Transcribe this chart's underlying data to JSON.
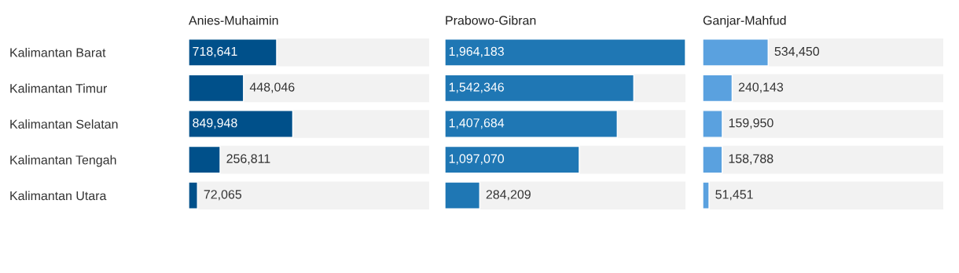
{
  "chart_data": [
    {
      "type": "bar",
      "orientation": "horizontal",
      "title": "Anies-Muhaimin",
      "categories": [
        "Kalimantan Barat",
        "Kalimantan Timur",
        "Kalimantan Selatan",
        "Kalimantan Tengah",
        "Kalimantan Utara"
      ],
      "values": [
        718641,
        448046,
        849948,
        256811,
        72065
      ],
      "value_labels": [
        "718,641",
        "448,046",
        "849,948",
        "256,811",
        "72,065"
      ],
      "color": "#00508a",
      "xlim": [
        0,
        1964183
      ],
      "tick_labels": "y"
    },
    {
      "type": "bar",
      "orientation": "horizontal",
      "title": "Prabowo-Gibran",
      "categories": [
        null,
        null,
        null,
        null,
        null
      ],
      "values": [
        1964183,
        1542346,
        1407684,
        1097070,
        284209
      ],
      "value_labels": [
        "1,964,183",
        "1,542,346",
        "1,407,684",
        "1,097,070",
        "284,209"
      ],
      "color": "#1f77b4",
      "xlim": [
        0,
        1964183
      ],
      "tick_labels": false
    },
    {
      "type": "bar",
      "orientation": "horizontal",
      "title": "Ganjar-Mahfud",
      "categories": [
        null,
        null,
        null,
        null,
        null
      ],
      "values": [
        534450,
        240143,
        159950,
        158788,
        51451
      ],
      "value_labels": [
        "534,450",
        "240,143",
        "159,950",
        "158,788",
        "51,451"
      ],
      "color": "#5aa1df",
      "xlim": [
        0,
        1964183
      ],
      "tick_labels": false
    }
  ]
}
